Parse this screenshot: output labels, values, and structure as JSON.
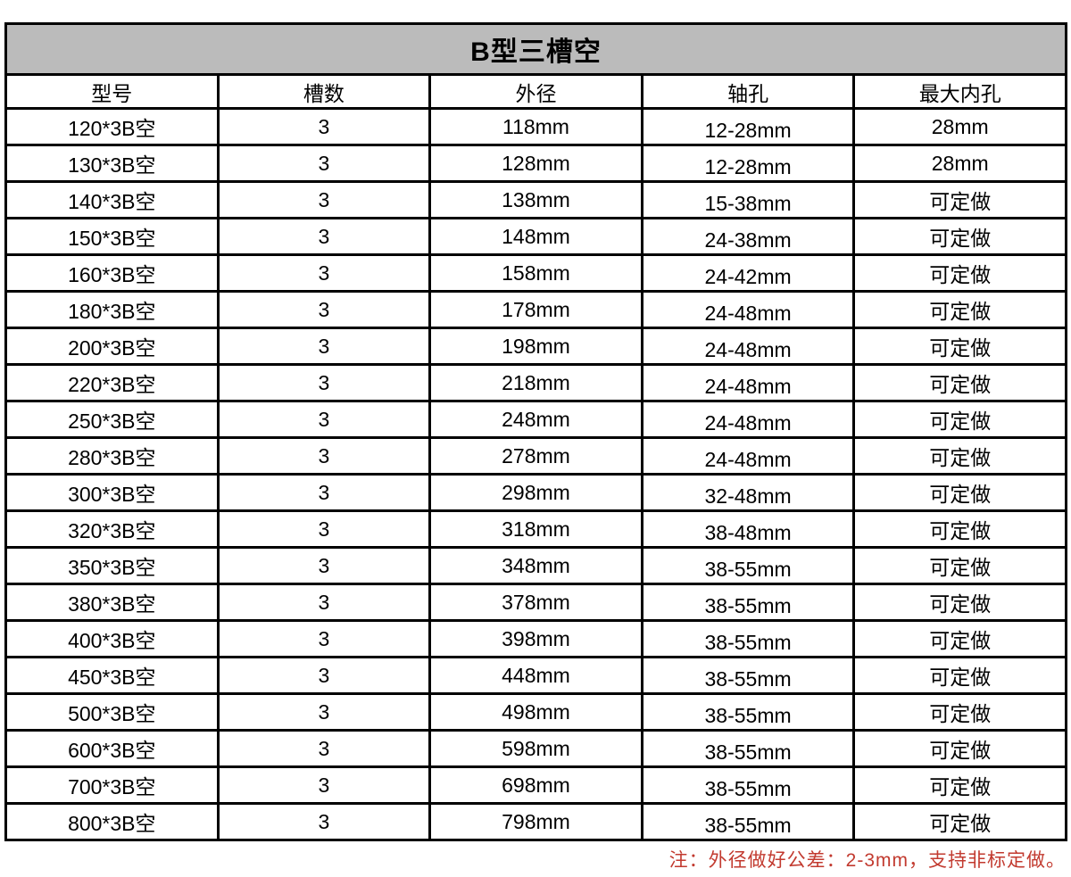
{
  "page": {
    "background": "#ffffff"
  },
  "colors": {
    "title_bg": "#bbbbbb",
    "grid_border": "#000000",
    "text": "#000000",
    "note_red": "#c23a2f"
  },
  "chart_data": {
    "type": "table",
    "title": "B型三槽空",
    "columns": [
      "型号",
      "槽数",
      "外径",
      "轴孔",
      "最大内孔"
    ],
    "rows": [
      [
        "120*3B空",
        "3",
        "118mm",
        "12-28mm",
        "28mm"
      ],
      [
        "130*3B空",
        "3",
        "128mm",
        "12-28mm",
        "28mm"
      ],
      [
        "140*3B空",
        "3",
        "138mm",
        "15-38mm",
        "可定做"
      ],
      [
        "150*3B空",
        "3",
        "148mm",
        "24-38mm",
        "可定做"
      ],
      [
        "160*3B空",
        "3",
        "158mm",
        "24-42mm",
        "可定做"
      ],
      [
        "180*3B空",
        "3",
        "178mm",
        "24-48mm",
        "可定做"
      ],
      [
        "200*3B空",
        "3",
        "198mm",
        "24-48mm",
        "可定做"
      ],
      [
        "220*3B空",
        "3",
        "218mm",
        "24-48mm",
        "可定做"
      ],
      [
        "250*3B空",
        "3",
        "248mm",
        "24-48mm",
        "可定做"
      ],
      [
        "280*3B空",
        "3",
        "278mm",
        "24-48mm",
        "可定做"
      ],
      [
        "300*3B空",
        "3",
        "298mm",
        "32-48mm",
        "可定做"
      ],
      [
        "320*3B空",
        "3",
        "318mm",
        "38-48mm",
        "可定做"
      ],
      [
        "350*3B空",
        "3",
        "348mm",
        "38-55mm",
        "可定做"
      ],
      [
        "380*3B空",
        "3",
        "378mm",
        "38-55mm",
        "可定做"
      ],
      [
        "400*3B空",
        "3",
        "398mm",
        "38-55mm",
        "可定做"
      ],
      [
        "450*3B空",
        "3",
        "448mm",
        "38-55mm",
        "可定做"
      ],
      [
        "500*3B空",
        "3",
        "498mm",
        "38-55mm",
        "可定做"
      ],
      [
        "600*3B空",
        "3",
        "598mm",
        "38-55mm",
        "可定做"
      ],
      [
        "700*3B空",
        "3",
        "698mm",
        "38-55mm",
        "可定做"
      ],
      [
        "800*3B空",
        "3",
        "798mm",
        "38-55mm",
        "可定做"
      ]
    ],
    "note": "注：外径做好公差：2-3mm，支持非标定做。",
    "layout": {
      "column_width_percent": 20,
      "grid": "on",
      "note_position": "bottom-right"
    }
  }
}
